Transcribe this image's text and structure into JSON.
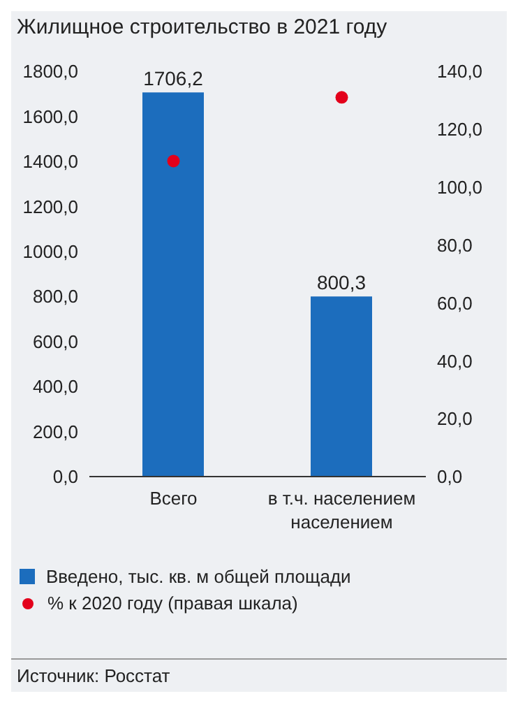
{
  "chart_data": {
    "type": "bar",
    "title": "Жилищное строительство в 2021 году",
    "categories": [
      "Всего",
      "в т.ч. населением\nнаселением"
    ],
    "series": [
      {
        "name": "Введено, тыс. кв. м общей площади",
        "color": "#1c6dbd",
        "values": [
          1706.2,
          800.3
        ]
      },
      {
        "name": "% к 2020 году (правая шкала)",
        "color": "#e3001b",
        "values": [
          109,
          131
        ],
        "type": "scatter",
        "axis": "y2"
      }
    ],
    "ylim": [
      0,
      1800
    ],
    "yticks": [
      {
        "value": 0,
        "label": "0,0"
      },
      {
        "value": 200,
        "label": "200,0"
      },
      {
        "value": 400,
        "label": "400,0"
      },
      {
        "value": 600,
        "label": "600,0"
      },
      {
        "value": 800,
        "label": "800,0"
      },
      {
        "value": 1000,
        "label": "1000,0"
      },
      {
        "value": 1200,
        "label": "1200,0"
      },
      {
        "value": 1400,
        "label": "1400,0"
      },
      {
        "value": 1600,
        "label": "1600,0"
      },
      {
        "value": 1800,
        "label": "1800,0"
      }
    ],
    "y2lim": [
      0,
      140
    ],
    "y2ticks": [
      {
        "value": 0,
        "label": "0,0"
      },
      {
        "value": 20,
        "label": "20,0"
      },
      {
        "value": 40,
        "label": "40,0"
      },
      {
        "value": 60,
        "label": "60,0"
      },
      {
        "value": 80,
        "label": "80,0"
      },
      {
        "value": 100,
        "label": "100,0"
      },
      {
        "value": 120,
        "label": "120,0"
      },
      {
        "value": 140,
        "label": "140,0"
      }
    ],
    "value_labels": [
      "1706,2",
      "800,3"
    ],
    "grid": false,
    "legend": "bottom",
    "marker": "circle",
    "annotations": [
      "Источник: Росстат"
    ]
  }
}
